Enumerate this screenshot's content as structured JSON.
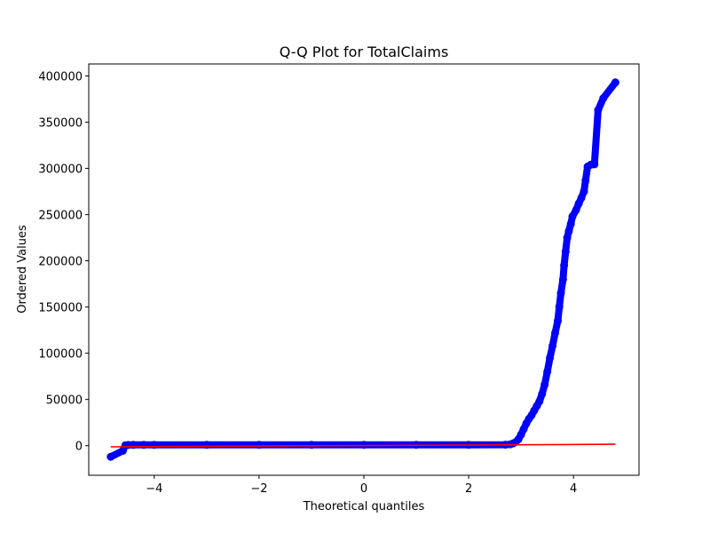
{
  "chart_data": {
    "type": "scatter",
    "title": "Q-Q Plot for TotalClaims",
    "xlabel": "Theoretical quantiles",
    "ylabel": "Ordered Values",
    "xlim": [
      -5.25,
      5.25
    ],
    "ylim": [
      -32000,
      413000
    ],
    "x_ticks": [
      -4,
      -2,
      0,
      2,
      4
    ],
    "x_tick_labels": [
      "−4",
      "−2",
      "0",
      "2",
      "4"
    ],
    "y_ticks": [
      0,
      50000,
      100000,
      150000,
      200000,
      250000,
      300000,
      350000,
      400000
    ],
    "y_tick_labels": [
      "0",
      "50000",
      "100000",
      "150000",
      "200000",
      "250000",
      "300000",
      "350000",
      "400000"
    ],
    "grid": false,
    "series": [
      {
        "kind": "points",
        "color": "#0000ff",
        "points": [
          [
            -4.83,
            -12000
          ],
          [
            -4.6,
            -5500
          ],
          [
            -4.55,
            500
          ],
          [
            -4.5,
            800
          ],
          [
            -4.4,
            900
          ],
          [
            -4.2,
            1000
          ],
          [
            -4.0,
            1000
          ],
          [
            -3.0,
            1000
          ],
          [
            -2.0,
            1000
          ],
          [
            -1.0,
            1000
          ],
          [
            0.0,
            1000
          ],
          [
            1.0,
            1000
          ],
          [
            2.0,
            1000
          ],
          [
            2.7,
            1100
          ],
          [
            2.8,
            1500
          ],
          [
            2.85,
            2500
          ],
          [
            2.9,
            4000
          ],
          [
            2.95,
            7000
          ],
          [
            3.0,
            12000
          ],
          [
            3.05,
            18000
          ],
          [
            3.1,
            24000
          ],
          [
            3.15,
            29000
          ],
          [
            3.2,
            33000
          ],
          [
            3.25,
            38000
          ],
          [
            3.3,
            43000
          ],
          [
            3.35,
            48000
          ],
          [
            3.4,
            56000
          ],
          [
            3.45,
            66000
          ],
          [
            3.5,
            80000
          ],
          [
            3.55,
            95000
          ],
          [
            3.6,
            108000
          ],
          [
            3.65,
            122000
          ],
          [
            3.7,
            135000
          ],
          [
            3.73,
            150000
          ],
          [
            3.76,
            165000
          ],
          [
            3.8,
            180000
          ],
          [
            3.82,
            195000
          ],
          [
            3.85,
            210000
          ],
          [
            3.88,
            225000
          ],
          [
            3.91,
            232000
          ],
          [
            3.95,
            240000
          ],
          [
            3.98,
            248000
          ],
          [
            4.05,
            255000
          ],
          [
            4.1,
            262000
          ],
          [
            4.15,
            268000
          ],
          [
            4.2,
            275000
          ],
          [
            4.23,
            287000
          ],
          [
            4.27,
            302000
          ],
          [
            4.33,
            304000
          ],
          [
            4.4,
            304500
          ],
          [
            4.47,
            363000
          ],
          [
            4.57,
            376000
          ],
          [
            4.8,
            393000
          ]
        ]
      },
      {
        "kind": "fit_line",
        "color": "#ff0000",
        "points": [
          [
            -4.83,
            -1200
          ],
          [
            4.8,
            1500
          ]
        ]
      }
    ]
  }
}
